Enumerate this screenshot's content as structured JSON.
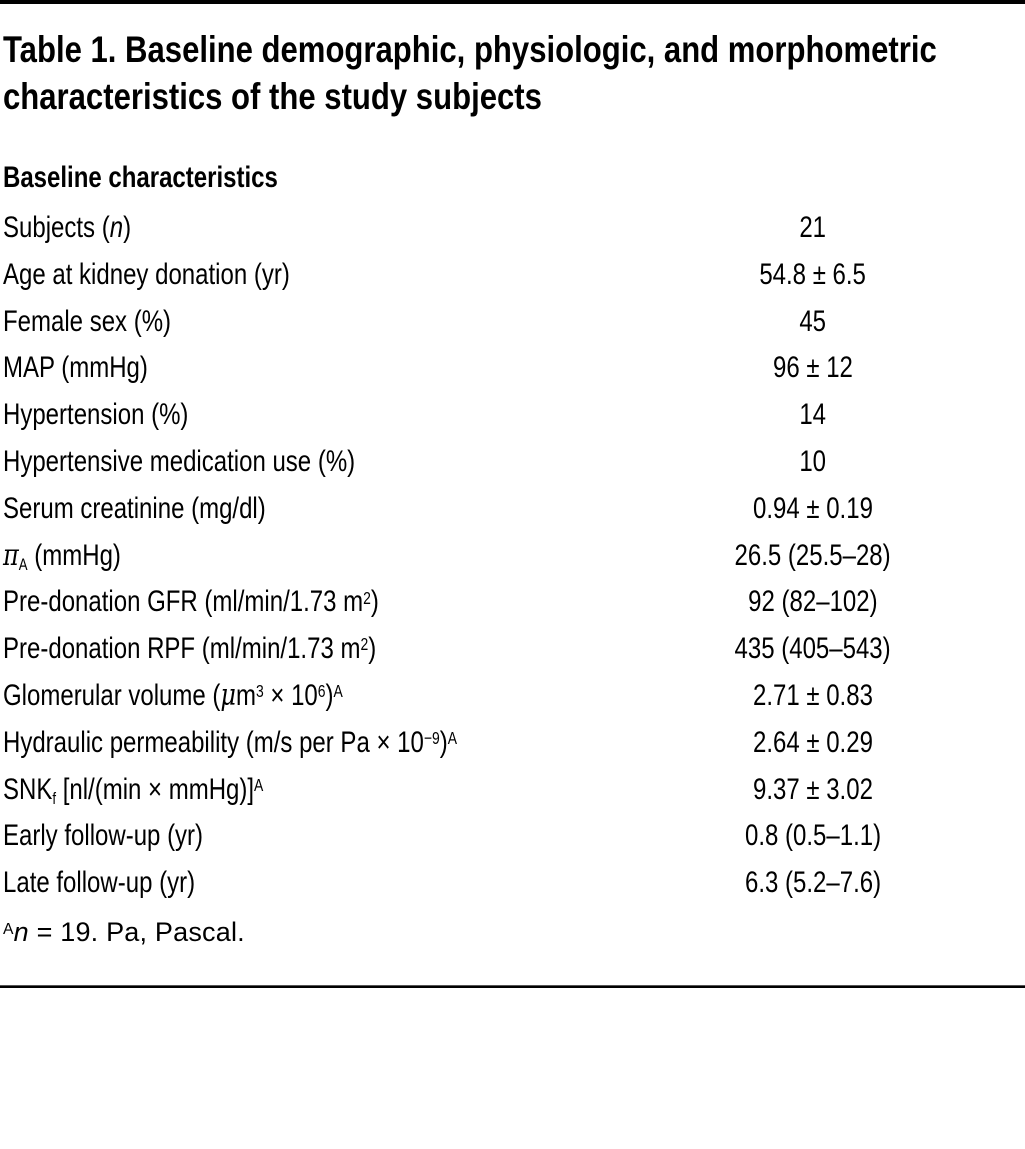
{
  "page": {
    "background_color": "#ffffff",
    "text_color": "#000000",
    "rule_color": "#000000"
  },
  "table": {
    "title": "Table 1. Baseline demographic, physiologic, and morphometric characteristics of the study subjects",
    "section_header": "Baseline characteristics",
    "rows": [
      {
        "label": "Subjects (*{n})",
        "value": "21"
      },
      {
        "label": "Age at kidney donation (yr)",
        "value": "54.8 ± 6.5"
      },
      {
        "label": "Female sex (%)",
        "value": "45"
      },
      {
        "label": "MAP (mmHg)",
        "value": "96 ± 12"
      },
      {
        "label": "Hypertension (%)",
        "value": "14"
      },
      {
        "label": "Hypertensive medication use (%)",
        "value": "10"
      },
      {
        "label": "Serum creatinine (mg/dl)",
        "value": "0.94 ± 0.19"
      },
      {
        "label": "@{π}_{A} (mmHg)",
        "value": "26.5 (25.5–28)"
      },
      {
        "label": "Pre-donation GFR (ml/min/1.73 m^{2})",
        "value": "92 (82–102)"
      },
      {
        "label": "Pre-donation RPF (ml/min/1.73 m^{2})",
        "value": "435 (405–543)"
      },
      {
        "label": "Glomerular volume (@{μ}m^{3} × 10^{6})^{A}",
        "value": "2.71 ± 0.83"
      },
      {
        "label": "Hydraulic permeability (m/s per Pa × 10^{−9})^{A}",
        "value": "2.64 ± 0.29"
      },
      {
        "label": "SNK_{f} [nl/(min × mmHg)]^{A}",
        "value": "9.37 ± 3.02"
      },
      {
        "label": "Early follow-up (yr)",
        "value": "0.8 (0.5–1.1)"
      },
      {
        "label": "Late follow-up (yr)",
        "value": "6.3 (5.2–7.6)"
      }
    ],
    "footnote": "^{A}*{n} = 19. Pa, Pascal."
  }
}
